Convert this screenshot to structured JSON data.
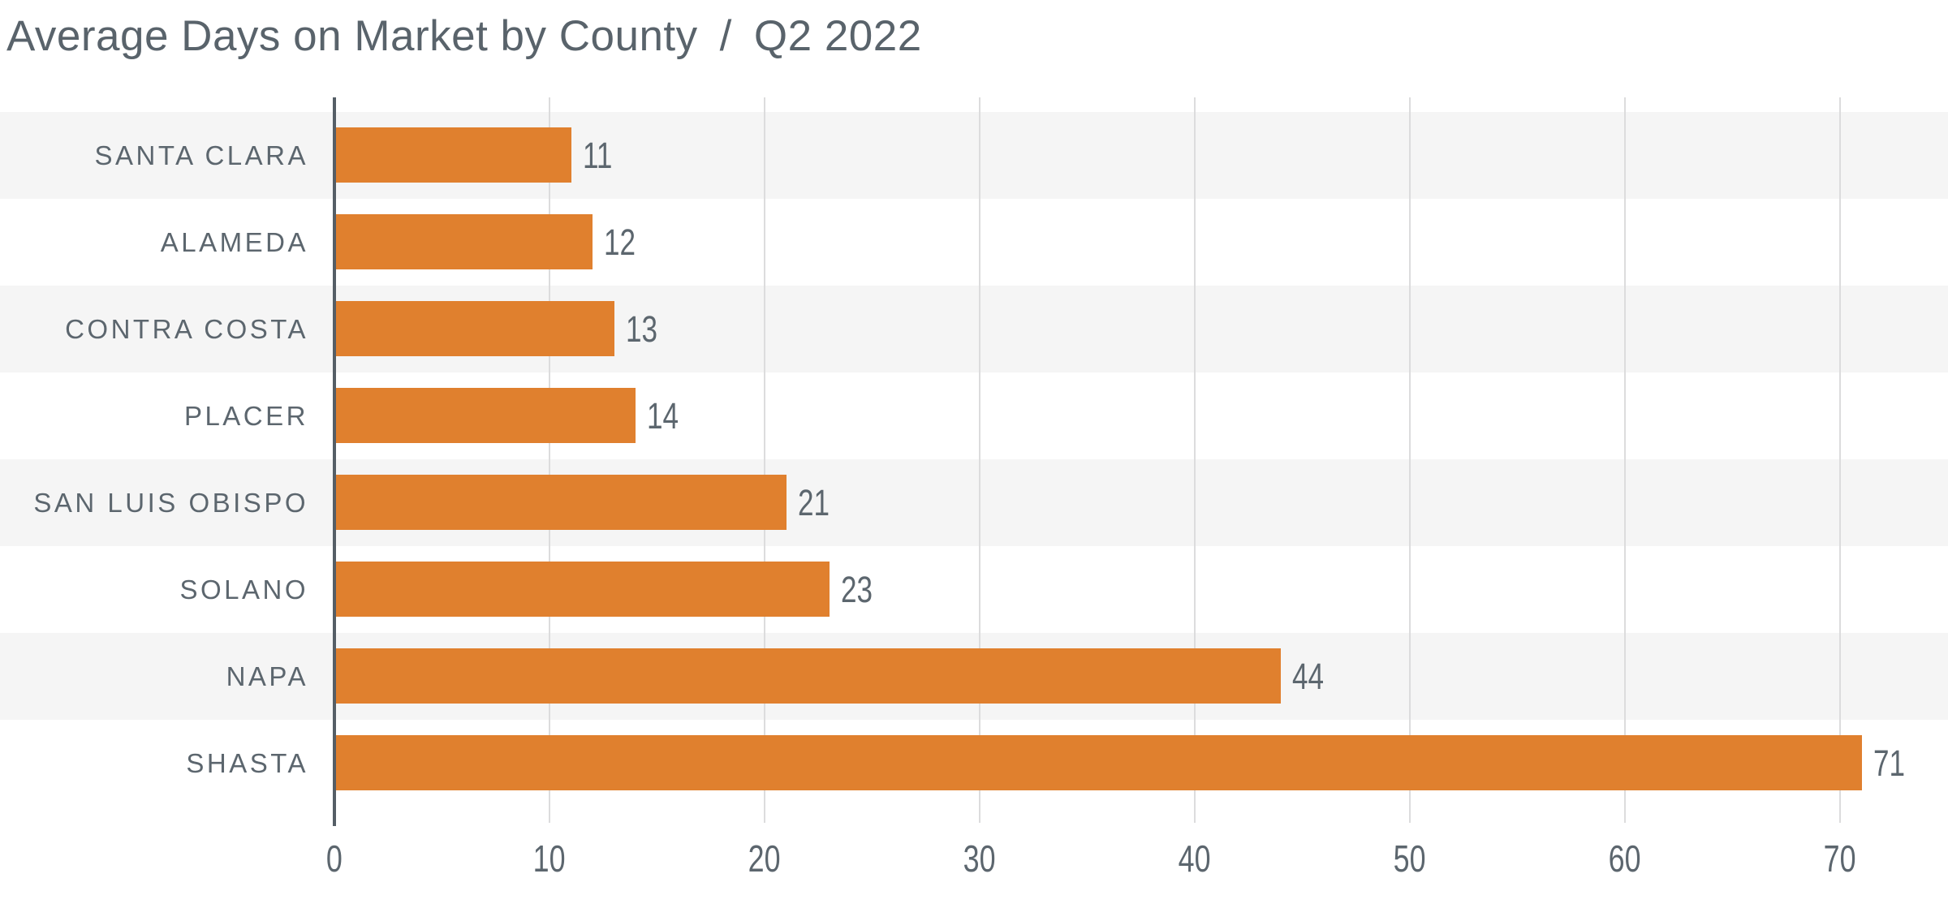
{
  "title": {
    "main": "Average Days on Market by County",
    "separator": "/",
    "period": "Q2 2022"
  },
  "chart_data": {
    "type": "bar",
    "orientation": "horizontal",
    "title": "Average Days on Market by County / Q2 2022",
    "categories": [
      "SANTA CLARA",
      "ALAMEDA",
      "CONTRA COSTA",
      "PLACER",
      "SAN LUIS OBISPO",
      "SOLANO",
      "NAPA",
      "SHASTA"
    ],
    "values": [
      11,
      12,
      13,
      14,
      21,
      23,
      44,
      71
    ],
    "value_labels": [
      "11",
      "12",
      "13",
      "14",
      "21",
      "23",
      "44",
      "71"
    ],
    "xlabel": "",
    "ylabel": "",
    "xlim": [
      0,
      75
    ],
    "xticks": [
      0,
      10,
      20,
      30,
      40,
      50,
      60,
      70
    ],
    "grid": "vertical",
    "legend": "none",
    "row_striping": "alternate-starting-first",
    "colors": {
      "bar": "#E0802E",
      "stripe": "#F5F5F5",
      "gridline": "#DCDCDD",
      "axis": "#555E66",
      "text": "#5C666E",
      "title_text": "#59636B"
    }
  }
}
